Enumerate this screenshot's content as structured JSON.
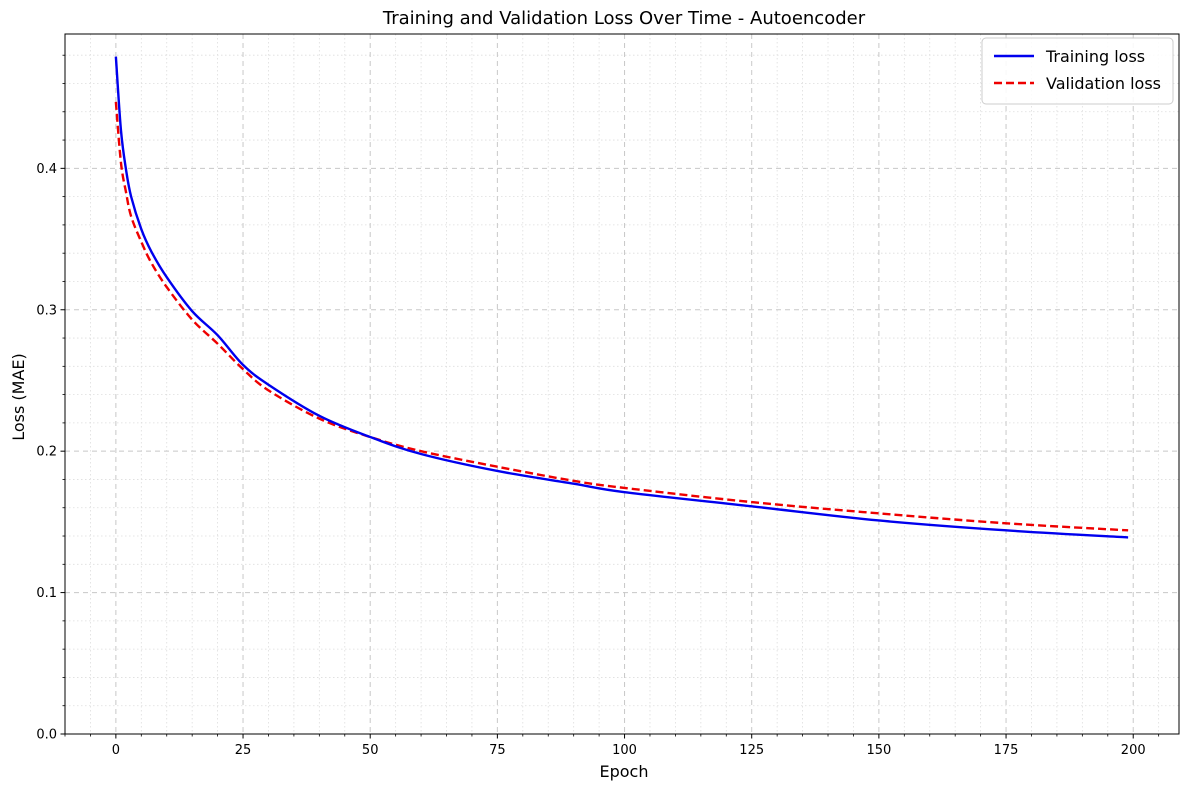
{
  "chart_data": {
    "type": "line",
    "title": "Training and Validation Loss Over Time - Autoencoder",
    "xlabel": "Epoch",
    "ylabel": "Loss (MAE)",
    "xlim": [
      -10,
      209
    ],
    "ylim": [
      0,
      0.495
    ],
    "x_ticks": [
      0,
      25,
      50,
      75,
      100,
      125,
      150,
      175,
      200
    ],
    "y_ticks": [
      0.0,
      0.1,
      0.2,
      0.3,
      0.4
    ],
    "x_tick_labels": [
      "0",
      "25",
      "50",
      "75",
      "100",
      "125",
      "150",
      "175",
      "200"
    ],
    "y_tick_labels": [
      "0.0",
      "0.1",
      "0.2",
      "0.3",
      "0.4"
    ],
    "grid": true,
    "minor_grid": true,
    "legend_position": "top-right",
    "x": [
      0,
      1,
      2,
      3,
      5,
      7,
      10,
      15,
      20,
      25,
      30,
      40,
      50,
      60,
      75,
      90,
      100,
      125,
      150,
      175,
      199
    ],
    "series": [
      {
        "name": "Training loss",
        "color": "#0000ee",
        "style": "solid",
        "values": [
          0.479,
          0.427,
          0.399,
          0.38,
          0.357,
          0.341,
          0.323,
          0.299,
          0.282,
          0.261,
          0.247,
          0.225,
          0.21,
          0.198,
          0.186,
          0.177,
          0.171,
          0.161,
          0.151,
          0.144,
          0.139
        ]
      },
      {
        "name": "Validation loss",
        "color": "#ee0000",
        "style": "dashed",
        "values": [
          0.447,
          0.404,
          0.383,
          0.366,
          0.348,
          0.333,
          0.316,
          0.293,
          0.276,
          0.258,
          0.243,
          0.223,
          0.21,
          0.2,
          0.189,
          0.179,
          0.174,
          0.164,
          0.156,
          0.149,
          0.144
        ]
      }
    ]
  }
}
